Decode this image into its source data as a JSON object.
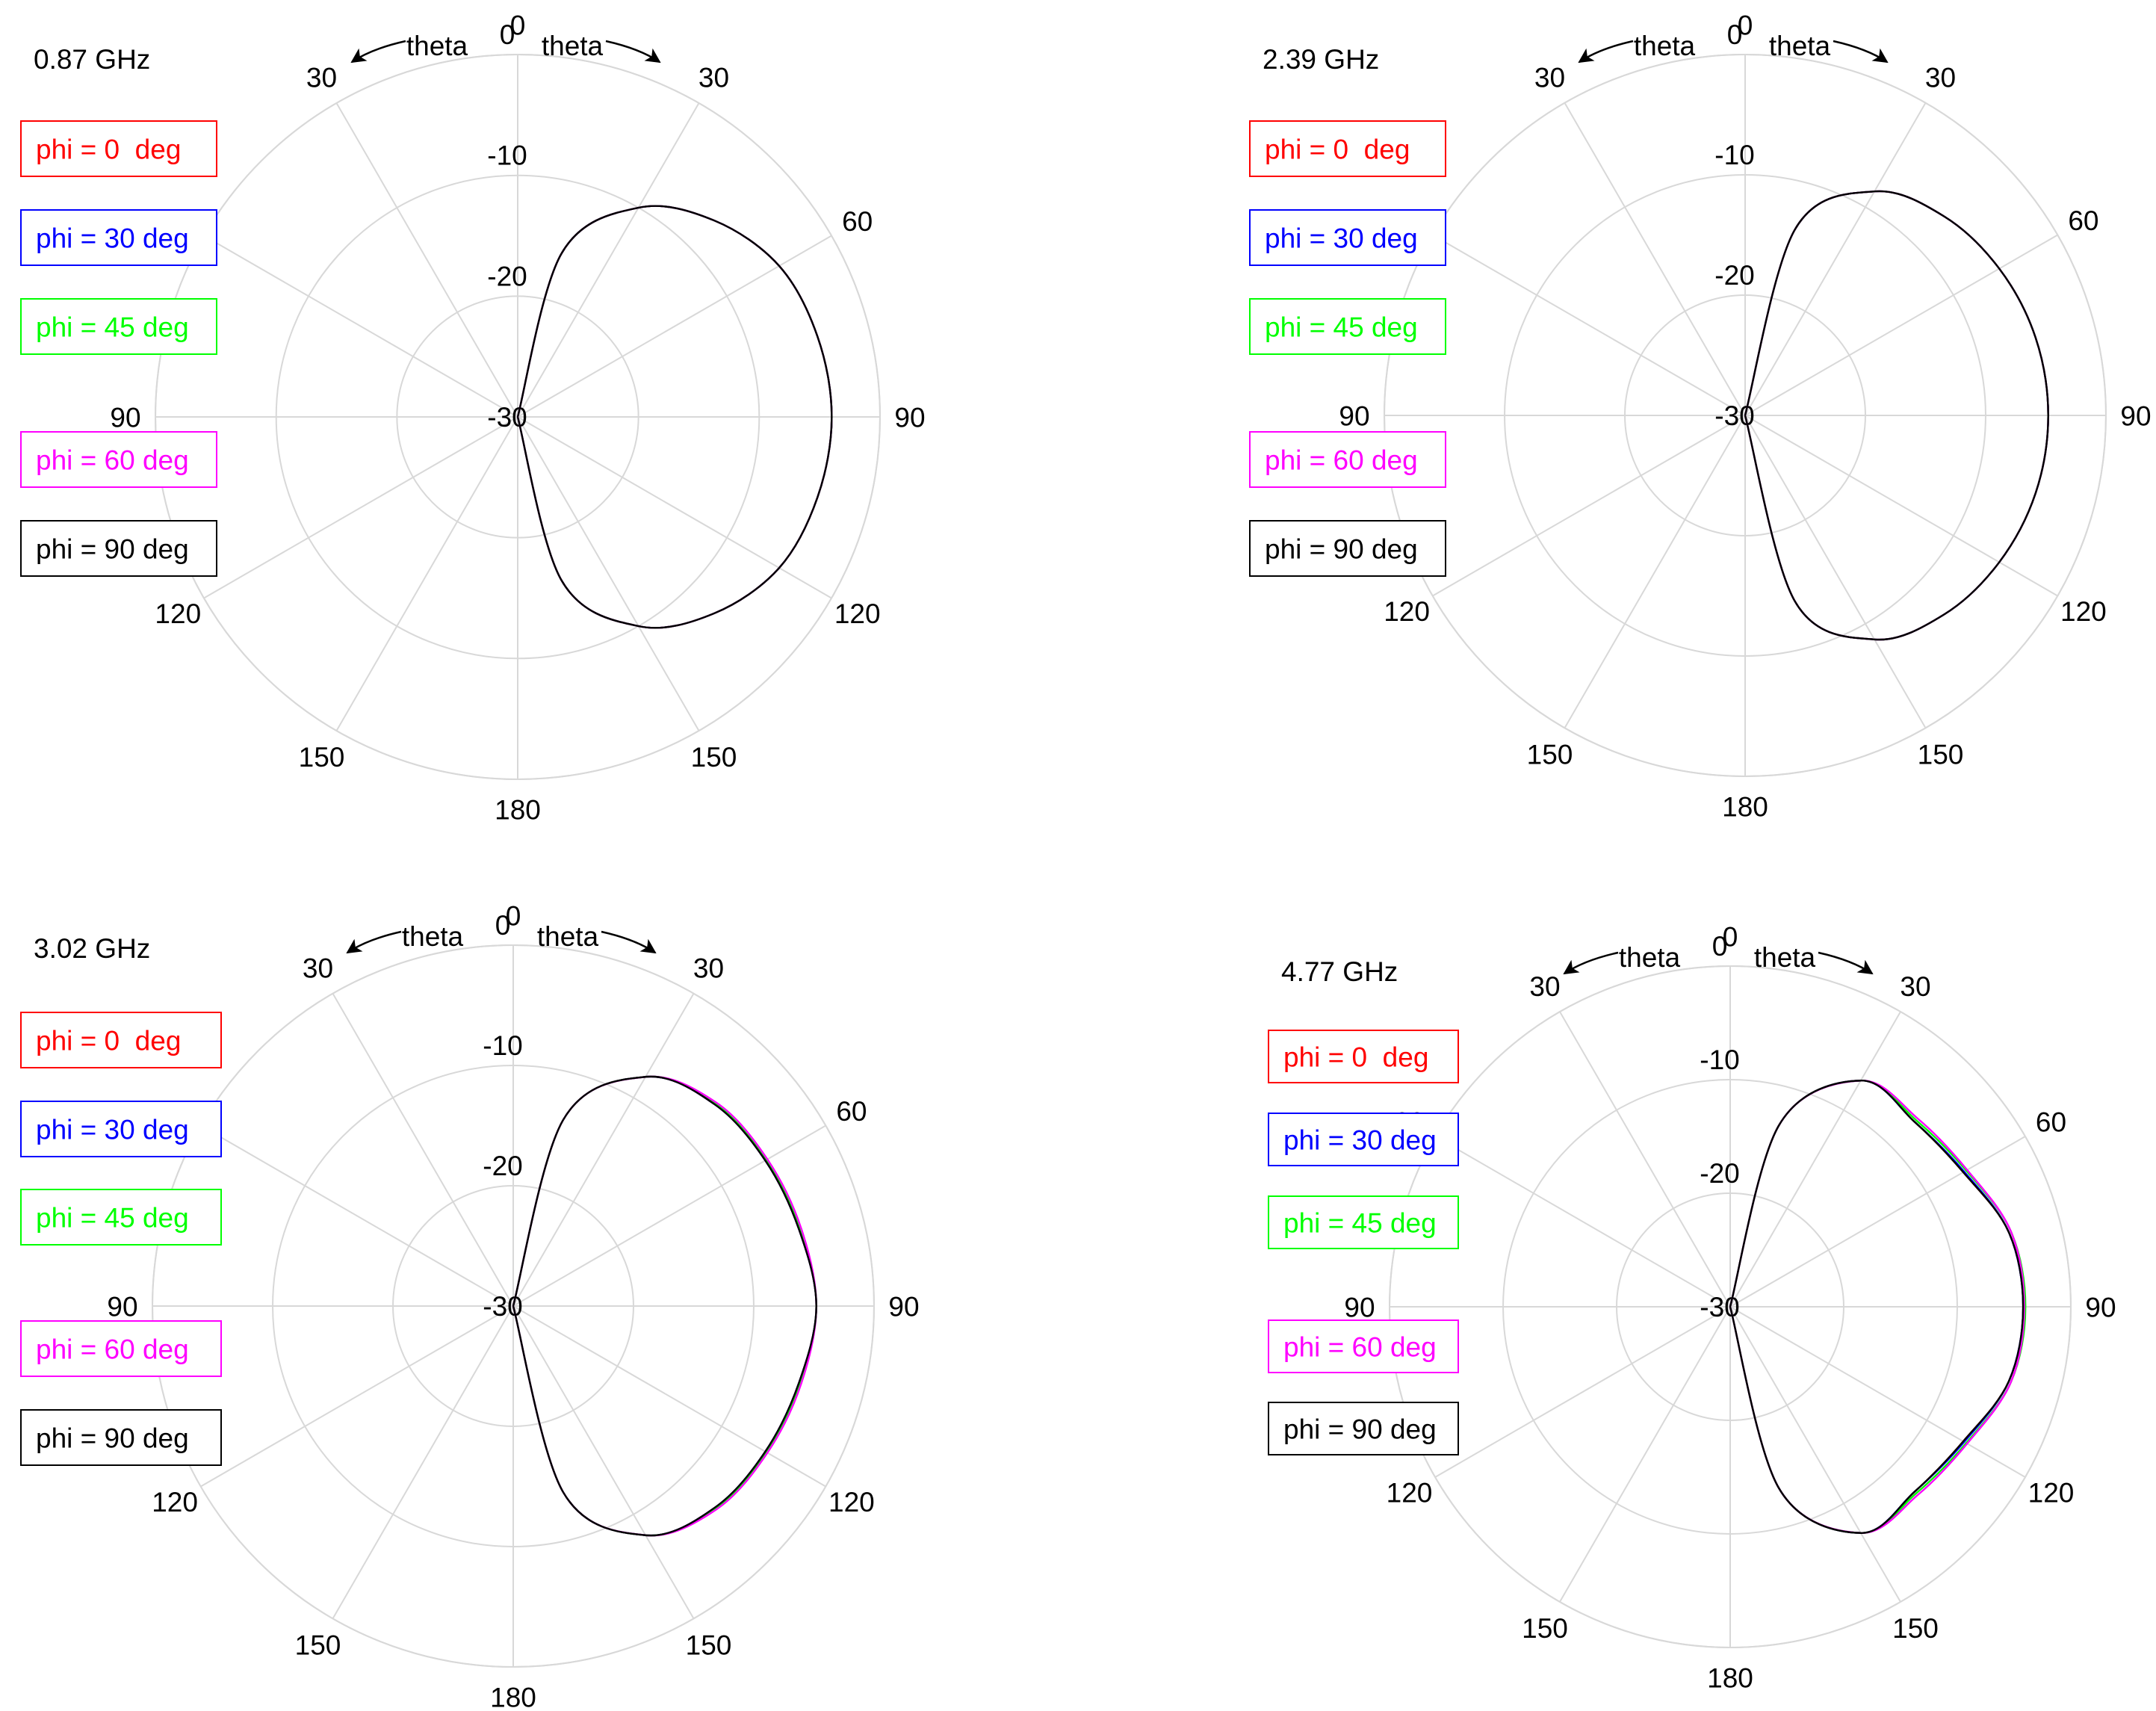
{
  "chart_data": [
    {
      "type": "polar",
      "title": "0.87 GHz",
      "direction_label_left": "theta",
      "direction_label_right": "theta",
      "angle_unit": "deg",
      "angle_range": [
        0,
        180
      ],
      "radial_range": [
        -30,
        0
      ],
      "radial_ticks": [
        {
          "value": 0,
          "label": "0"
        },
        {
          "value": -10,
          "label": "-10"
        },
        {
          "value": -20,
          "label": "-20"
        },
        {
          "value": -30,
          "label": "-30"
        }
      ],
      "angle_ticks": [
        {
          "value": 0,
          "label": "0"
        },
        {
          "value": 30,
          "label": "30"
        },
        {
          "value": 60,
          "label": "60"
        },
        {
          "value": 90,
          "label": "90"
        },
        {
          "value": 120,
          "label": "120"
        },
        {
          "value": 150,
          "label": "150"
        },
        {
          "value": 180,
          "label": "180"
        }
      ],
      "theta": [
        0,
        15,
        30,
        45,
        60,
        75,
        90,
        105,
        120,
        135,
        150,
        165,
        180
      ],
      "series": [
        {
          "name": "phi = 0  deg",
          "color": "#ff0000",
          "values": [
            -30.0,
            -16.0,
            -10.0,
            -7.0,
            -5.0,
            -4.3,
            -4.0,
            -4.3,
            -5.0,
            -7.0,
            -10.0,
            -16.0,
            -30.0
          ]
        },
        {
          "name": "phi = 30 deg",
          "color": "#0000ff",
          "values": [
            -30.0,
            -16.0,
            -10.0,
            -7.0,
            -5.0,
            -4.3,
            -4.0,
            -4.3,
            -5.0,
            -7.0,
            -10.0,
            -16.0,
            -30.0
          ]
        },
        {
          "name": "phi = 45 deg",
          "color": "#00ff00",
          "values": [
            -30.0,
            -16.0,
            -10.0,
            -7.0,
            -5.0,
            -4.3,
            -4.0,
            -4.3,
            -5.0,
            -7.0,
            -10.0,
            -16.0,
            -30.0
          ]
        },
        {
          "name": "phi = 60 deg",
          "color": "#ff00ff",
          "values": [
            -30.0,
            -16.0,
            -10.0,
            -7.0,
            -5.0,
            -4.3,
            -4.0,
            -4.3,
            -5.0,
            -7.0,
            -10.0,
            -16.0,
            -30.0
          ]
        },
        {
          "name": "phi = 90 deg",
          "color": "#000000",
          "values": [
            -30.0,
            -16.0,
            -10.0,
            -7.0,
            -5.0,
            -4.3,
            -4.0,
            -4.3,
            -5.0,
            -7.0,
            -10.0,
            -16.0,
            -30.0
          ]
        }
      ]
    },
    {
      "type": "polar",
      "title": "2.39 GHz",
      "direction_label_left": "theta",
      "direction_label_right": "theta",
      "angle_unit": "deg",
      "angle_range": [
        0,
        180
      ],
      "radial_range": [
        -30,
        0
      ],
      "radial_ticks": [
        {
          "value": 0,
          "label": "0"
        },
        {
          "value": -10,
          "label": "-10"
        },
        {
          "value": -20,
          "label": "-20"
        },
        {
          "value": -30,
          "label": "-30"
        }
      ],
      "angle_ticks": [
        {
          "value": 0,
          "label": "0"
        },
        {
          "value": 30,
          "label": "30"
        },
        {
          "value": 60,
          "label": "60"
        },
        {
          "value": 90,
          "label": "90"
        },
        {
          "value": 120,
          "label": "120"
        },
        {
          "value": 150,
          "label": "150"
        },
        {
          "value": 180,
          "label": "180"
        }
      ],
      "theta": [
        0,
        15,
        30,
        45,
        60,
        75,
        90,
        105,
        120,
        135,
        150,
        165,
        180
      ],
      "series": [
        {
          "name": "phi = 0  deg",
          "color": "#ff0000",
          "values": [
            -30.0,
            -14.0,
            -8.5,
            -6.6,
            -5.6,
            -5.0,
            -4.8,
            -5.0,
            -5.6,
            -6.6,
            -8.5,
            -14.0,
            -30.0
          ]
        },
        {
          "name": "phi = 30 deg",
          "color": "#0000ff",
          "values": [
            -30.0,
            -14.0,
            -8.5,
            -6.6,
            -5.6,
            -5.0,
            -4.8,
            -5.0,
            -5.6,
            -6.6,
            -8.5,
            -14.0,
            -30.0
          ]
        },
        {
          "name": "phi = 45 deg",
          "color": "#00ff00",
          "values": [
            -30.0,
            -14.0,
            -8.5,
            -6.6,
            -5.6,
            -5.0,
            -4.8,
            -5.0,
            -5.6,
            -6.6,
            -8.5,
            -14.0,
            -30.0
          ]
        },
        {
          "name": "phi = 60 deg",
          "color": "#ff00ff",
          "values": [
            -30.0,
            -14.0,
            -8.5,
            -6.6,
            -5.6,
            -5.0,
            -4.8,
            -5.0,
            -5.6,
            -6.6,
            -8.5,
            -14.0,
            -30.0
          ]
        },
        {
          "name": "phi = 90 deg",
          "color": "#000000",
          "values": [
            -30.0,
            -14.0,
            -8.5,
            -6.6,
            -5.6,
            -5.0,
            -4.8,
            -5.0,
            -5.6,
            -6.6,
            -8.5,
            -14.0,
            -30.0
          ]
        }
      ]
    },
    {
      "type": "polar",
      "title": "3.02 GHz",
      "direction_label_left": "theta",
      "direction_label_right": "theta",
      "angle_unit": "deg",
      "angle_range": [
        0,
        180
      ],
      "radial_range": [
        -30,
        0
      ],
      "radial_ticks": [
        {
          "value": 0,
          "label": "0"
        },
        {
          "value": -10,
          "label": "-10"
        },
        {
          "value": -20,
          "label": "-20"
        },
        {
          "value": -30,
          "label": "-30"
        }
      ],
      "angle_ticks": [
        {
          "value": 0,
          "label": "0"
        },
        {
          "value": 30,
          "label": "30"
        },
        {
          "value": 60,
          "label": "60"
        },
        {
          "value": 90,
          "label": "90"
        },
        {
          "value": 120,
          "label": "120"
        },
        {
          "value": 150,
          "label": "150"
        },
        {
          "value": 180,
          "label": "180"
        }
      ],
      "theta": [
        0,
        15,
        30,
        45,
        60,
        75,
        90,
        105,
        120,
        135,
        150,
        165,
        180
      ],
      "series": [
        {
          "name": "phi = 0  deg",
          "color": "#ff0000",
          "values": [
            -30.0,
            -14.0,
            -8.0,
            -6.3,
            -5.8,
            -5.4,
            -4.8,
            -5.4,
            -5.8,
            -6.3,
            -8.0,
            -14.0,
            -30.0
          ]
        },
        {
          "name": "phi = 30 deg",
          "color": "#0000ff",
          "values": [
            -30.0,
            -14.0,
            -8.0,
            -6.3,
            -5.8,
            -5.4,
            -4.8,
            -5.4,
            -5.8,
            -6.3,
            -8.0,
            -14.0,
            -30.0
          ]
        },
        {
          "name": "phi = 45 deg",
          "color": "#00ff00",
          "values": [
            -30.0,
            -14.0,
            -8.0,
            -6.2,
            -5.7,
            -5.3,
            -4.8,
            -5.3,
            -5.7,
            -6.2,
            -8.0,
            -14.0,
            -30.0
          ]
        },
        {
          "name": "phi = 60 deg",
          "color": "#ff00ff",
          "values": [
            -30.0,
            -14.0,
            -8.0,
            -6.1,
            -5.6,
            -5.2,
            -4.8,
            -5.2,
            -5.6,
            -6.1,
            -8.0,
            -14.0,
            -30.0
          ]
        },
        {
          "name": "phi = 90 deg",
          "color": "#000000",
          "values": [
            -30.0,
            -14.0,
            -8.0,
            -6.3,
            -5.8,
            -5.4,
            -4.8,
            -5.4,
            -5.8,
            -6.3,
            -8.0,
            -14.0,
            -30.0
          ]
        }
      ]
    },
    {
      "type": "polar",
      "title": "4.77 GHz",
      "direction_label_left": "theta",
      "direction_label_right": "theta",
      "angle_unit": "deg",
      "angle_range": [
        0,
        180
      ],
      "radial_range": [
        -30,
        0
      ],
      "radial_ticks": [
        {
          "value": 0,
          "label": "0"
        },
        {
          "value": -10,
          "label": "-10"
        },
        {
          "value": -20,
          "label": "-20"
        },
        {
          "value": -30,
          "label": "-30"
        }
      ],
      "angle_ticks": [
        {
          "value": 0,
          "label": "0"
        },
        {
          "value": 30,
          "label": "30"
        },
        {
          "value": 60,
          "label": "60"
        },
        {
          "value": 90,
          "label": "90"
        },
        {
          "value": 120,
          "label": "120"
        },
        {
          "value": 150,
          "label": "150"
        },
        {
          "value": 180,
          "label": "180"
        }
      ],
      "theta": [
        0,
        15,
        30,
        45,
        60,
        75,
        90,
        105,
        120,
        135,
        150,
        165,
        180
      ],
      "series": [
        {
          "name": "phi = 0  deg",
          "color": "#ff0000",
          "values": [
            -30.0,
            -13.5,
            -7.0,
            -7.0,
            -6.3,
            -4.6,
            -4.2,
            -4.6,
            -6.3,
            -7.0,
            -7.0,
            -13.5,
            -30.0
          ]
        },
        {
          "name": "phi = 30 deg",
          "color": "#0000ff",
          "values": [
            -30.0,
            -13.5,
            -7.0,
            -7.0,
            -6.2,
            -4.6,
            -4.2,
            -4.6,
            -6.2,
            -7.0,
            -7.0,
            -13.5,
            -30.0
          ]
        },
        {
          "name": "phi = 45 deg",
          "color": "#00ff00",
          "values": [
            -30.0,
            -13.5,
            -7.0,
            -6.8,
            -6.0,
            -4.4,
            -4.0,
            -4.4,
            -6.0,
            -6.8,
            -7.0,
            -13.5,
            -30.0
          ]
        },
        {
          "name": "phi = 60 deg",
          "color": "#ff00ff",
          "values": [
            -30.0,
            -13.5,
            -7.0,
            -6.6,
            -5.9,
            -4.4,
            -4.1,
            -4.4,
            -5.9,
            -6.6,
            -7.0,
            -13.5,
            -30.0
          ]
        },
        {
          "name": "phi = 90 deg",
          "color": "#000000",
          "values": [
            -30.0,
            -13.5,
            -7.0,
            -7.0,
            -6.3,
            -4.6,
            -4.2,
            -4.6,
            -6.3,
            -7.0,
            -7.0,
            -13.5,
            -30.0
          ]
        }
      ]
    }
  ]
}
